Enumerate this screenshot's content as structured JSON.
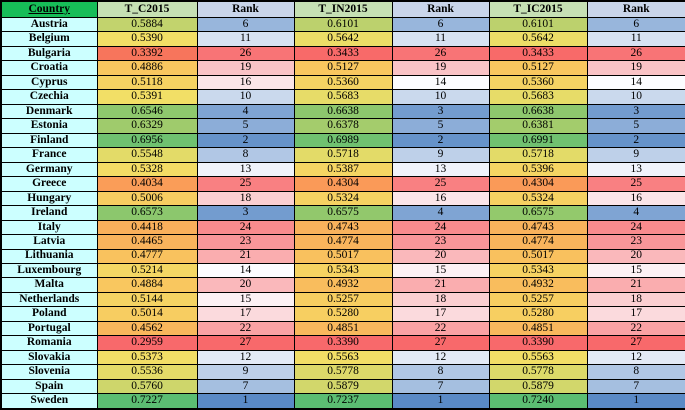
{
  "chart_data": {
    "type": "table",
    "columns": [
      {
        "label": "Country",
        "kind": "country"
      },
      {
        "label": "T_C2015",
        "kind": "value"
      },
      {
        "label": "Rank",
        "kind": "rank"
      },
      {
        "label": "T_IN2015",
        "kind": "value"
      },
      {
        "label": "Rank",
        "kind": "rank"
      },
      {
        "label": "T_IC2015",
        "kind": "value"
      },
      {
        "label": "Rank",
        "kind": "rank"
      }
    ],
    "rows": [
      [
        "Austria",
        "0.5884",
        "6",
        "0.6101",
        "6",
        "0.6101",
        "6"
      ],
      [
        "Belgium",
        "0.5390",
        "11",
        "0.5642",
        "11",
        "0.5642",
        "11"
      ],
      [
        "Bulgaria",
        "0.3392",
        "26",
        "0.3433",
        "26",
        "0.3433",
        "26"
      ],
      [
        "Croatia",
        "0.4886",
        "19",
        "0.5127",
        "19",
        "0.5127",
        "19"
      ],
      [
        "Cyprus",
        "0.5118",
        "16",
        "0.5360",
        "14",
        "0.5360",
        "14"
      ],
      [
        "Czechia",
        "0.5391",
        "10",
        "0.5683",
        "10",
        "0.5683",
        "10"
      ],
      [
        "Denmark",
        "0.6546",
        "4",
        "0.6638",
        "3",
        "0.6638",
        "3"
      ],
      [
        "Estonia",
        "0.6329",
        "5",
        "0.6378",
        "5",
        "0.6381",
        "5"
      ],
      [
        "Finland",
        "0.6956",
        "2",
        "0.6989",
        "2",
        "0.6991",
        "2"
      ],
      [
        "France",
        "0.5548",
        "8",
        "0.5718",
        "9",
        "0.5718",
        "9"
      ],
      [
        "Germany",
        "0.5328",
        "13",
        "0.5387",
        "13",
        "0.5396",
        "13"
      ],
      [
        "Greece",
        "0.4034",
        "25",
        "0.4304",
        "25",
        "0.4304",
        "25"
      ],
      [
        "Hungary",
        "0.5006",
        "18",
        "0.5324",
        "16",
        "0.5324",
        "16"
      ],
      [
        "Ireland",
        "0.6573",
        "3",
        "0.6575",
        "4",
        "0.6575",
        "4"
      ],
      [
        "Italy",
        "0.4418",
        "24",
        "0.4743",
        "24",
        "0.4743",
        "24"
      ],
      [
        "Latvia",
        "0.4465",
        "23",
        "0.4774",
        "23",
        "0.4774",
        "23"
      ],
      [
        "Lithuania",
        "0.4777",
        "21",
        "0.5017",
        "20",
        "0.5017",
        "20"
      ],
      [
        "Luxembourg",
        "0.5214",
        "14",
        "0.5343",
        "15",
        "0.5343",
        "15"
      ],
      [
        "Malta",
        "0.4884",
        "20",
        "0.4932",
        "21",
        "0.4932",
        "21"
      ],
      [
        "Netherlands",
        "0.5144",
        "15",
        "0.5257",
        "18",
        "0.5257",
        "18"
      ],
      [
        "Poland",
        "0.5014",
        "17",
        "0.5280",
        "17",
        "0.5280",
        "17"
      ],
      [
        "Portugal",
        "0.4562",
        "22",
        "0.4851",
        "22",
        "0.4851",
        "22"
      ],
      [
        "Romania",
        "0.2959",
        "27",
        "0.3390",
        "27",
        "0.3390",
        "27"
      ],
      [
        "Slovakia",
        "0.5373",
        "12",
        "0.5563",
        "12",
        "0.5563",
        "12"
      ],
      [
        "Slovenia",
        "0.5536",
        "9",
        "0.5778",
        "8",
        "0.5778",
        "8"
      ],
      [
        "Spain",
        "0.5760",
        "7",
        "0.5879",
        "7",
        "0.5879",
        "7"
      ],
      [
        "Sweden",
        "0.7227",
        "1",
        "0.7237",
        "1",
        "0.7240",
        "1"
      ]
    ],
    "legend": "Value columns shaded red (low) to yellow to green (high); Rank columns shaded blue (rank 1) to white (rank 14) to red (rank 27)"
  },
  "colors": {
    "header_country_bg": "#17BD58",
    "header_value_bg": "#C6E0B4",
    "header_rank_bg": "#C9D5EA",
    "country_cell_bg": "#CCFFFF",
    "border": "#000000",
    "text": "#000000",
    "value_scale_stops": [
      [
        0,
        "#F8696B"
      ],
      [
        0.1,
        "#F7755C"
      ],
      [
        0.25,
        "#FA9D58"
      ],
      [
        0.45,
        "#F9C75F"
      ],
      [
        0.57,
        "#F2DF66"
      ],
      [
        0.68,
        "#C4D36D"
      ],
      [
        0.82,
        "#95C96C"
      ],
      [
        1,
        "#5BBD72"
      ]
    ],
    "rank_scale_stops": [
      [
        0,
        "#5A8AC6"
      ],
      [
        0.5,
        "#FCFCFF"
      ],
      [
        1,
        "#F8696B"
      ]
    ]
  }
}
